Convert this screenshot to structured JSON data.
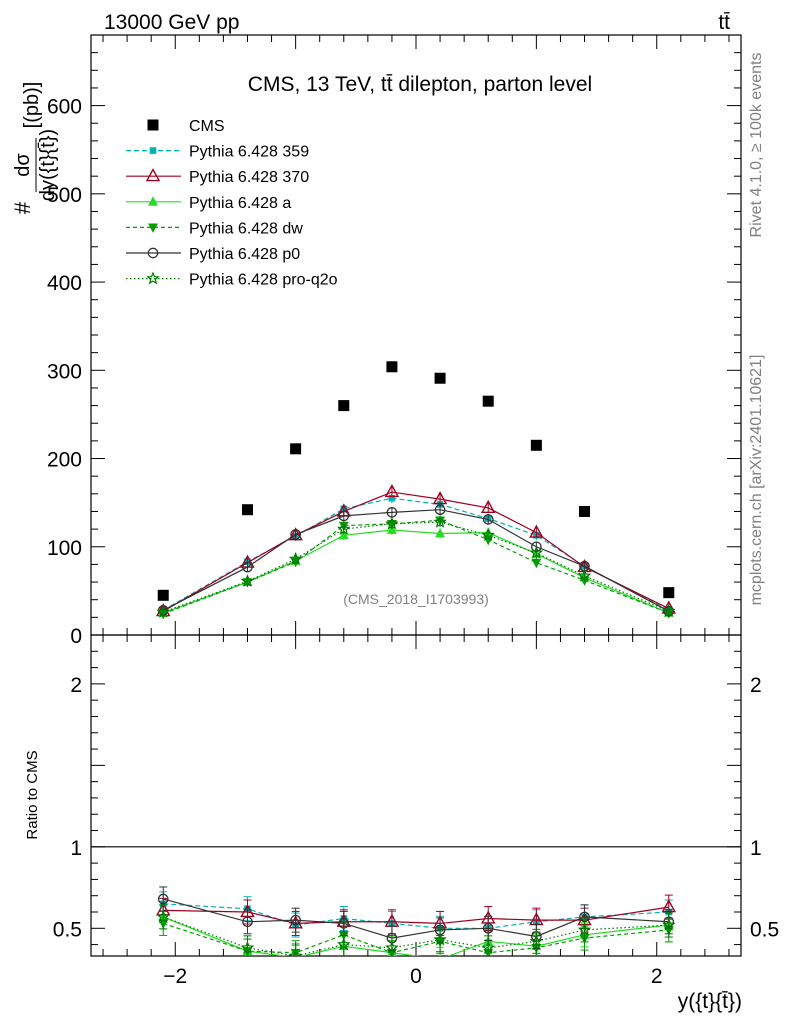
{
  "header": {
    "left": "13000 GeV pp",
    "right": "tt̄"
  },
  "side": {
    "rivet": "Rivet 4.1.0, ≥ 100k events",
    "mcplots": "mcplots.cern.ch [arXiv:2401.10621]"
  },
  "chart_data": {
    "type": "scatter",
    "title": "CMS, 13 TeV, tt̄ dilepton, parton level",
    "watermark": "(CMS_2018_I1703993)",
    "ylabel_top": "#",
    "ylabel_num": "dσ",
    "ylabel_den": "dy({t}{t̄})",
    "ylabel_unit": "[(pb)]",
    "ratio_ylabel": "Ratio to CMS",
    "xlabel": "y({t}{t̄})",
    "xlim": [
      -2.7,
      2.7
    ],
    "ylim": [
      0,
      680
    ],
    "ratio_ylim": [
      0.33,
      2.3
    ],
    "xticks": [
      "−2",
      "0",
      "2"
    ],
    "xtick_values": [
      -2,
      0,
      2
    ],
    "yticks": [
      "0",
      "100",
      "200",
      "300",
      "400",
      "500",
      "600"
    ],
    "ytick_values": [
      0,
      100,
      200,
      300,
      400,
      500,
      600
    ],
    "ratio_yticks": [
      "0.5",
      "1",
      "2"
    ],
    "ratio_ytick_values": [
      0.5,
      1,
      2
    ],
    "x": [
      -2.1,
      -1.4,
      -1.0,
      -0.6,
      -0.2,
      0.2,
      0.6,
      1.0,
      1.4,
      2.1
    ],
    "series": [
      {
        "name": "CMS",
        "color": "#000000",
        "marker": "square",
        "dash": "none",
        "legend_marker": "square",
        "values": [
          45,
          142,
          211,
          260,
          304,
          291,
          265,
          215,
          140,
          48
        ],
        "ratio": [
          1,
          1,
          1,
          1,
          1,
          1,
          1,
          1,
          1,
          1
        ]
      },
      {
        "name": "Pythia 6.428 359",
        "color": "#00b3b3",
        "marker": "smallsquare",
        "dash": "5,3",
        "values": [
          28,
          83,
          112,
          143,
          155,
          148,
          132,
          113,
          78,
          28
        ],
        "ratio": [
          0.65,
          0.62,
          0.52,
          0.56,
          0.53,
          0.5,
          0.5,
          0.54,
          0.57,
          0.6
        ]
      },
      {
        "name": "Pythia 6.428 370",
        "color": "#a00020",
        "marker": "opentriangle",
        "dash": "none",
        "values": [
          27,
          82,
          113,
          140,
          162,
          154,
          144,
          116,
          77,
          30
        ],
        "ratio": [
          0.61,
          0.6,
          0.53,
          0.54,
          0.54,
          0.53,
          0.56,
          0.55,
          0.55,
          0.63
        ]
      },
      {
        "name": "Pythia 6.428 a",
        "color": "#22dd22",
        "marker": "triangle",
        "dash": "none",
        "values": [
          25,
          60,
          84,
          113,
          119,
          115,
          116,
          92,
          65,
          25
        ],
        "ratio": [
          0.57,
          0.36,
          0.32,
          0.39,
          0.35,
          0.31,
          0.42,
          0.39,
          0.46,
          0.52
        ]
      },
      {
        "name": "Pythia 6.428 dw",
        "color": "#00a000",
        "marker": "invtriangle",
        "dash": "4,3",
        "values": [
          24,
          60,
          83,
          124,
          126,
          130,
          108,
          82,
          62,
          25
        ],
        "ratio": [
          0.53,
          0.36,
          0.35,
          0.46,
          0.35,
          0.42,
          0.35,
          0.38,
          0.44,
          0.49
        ]
      },
      {
        "name": "Pythia 6.428 p0",
        "color": "#333333",
        "marker": "opencircle",
        "dash": "none",
        "values": [
          28,
          77,
          114,
          135,
          139,
          142,
          131,
          100,
          78,
          27
        ],
        "ratio": [
          0.68,
          0.54,
          0.55,
          0.53,
          0.44,
          0.49,
          0.5,
          0.45,
          0.57,
          0.54
        ]
      },
      {
        "name": "Pythia 6.428 pro-q2o",
        "color": "#007a00",
        "marker": "star",
        "dash": "1.5,2.5",
        "values": [
          26,
          61,
          86,
          120,
          126,
          128,
          113,
          93,
          67,
          27
        ],
        "ratio": [
          0.57,
          0.38,
          0.33,
          0.4,
          0.38,
          0.43,
          0.38,
          0.42,
          0.49,
          0.52
        ]
      }
    ]
  }
}
